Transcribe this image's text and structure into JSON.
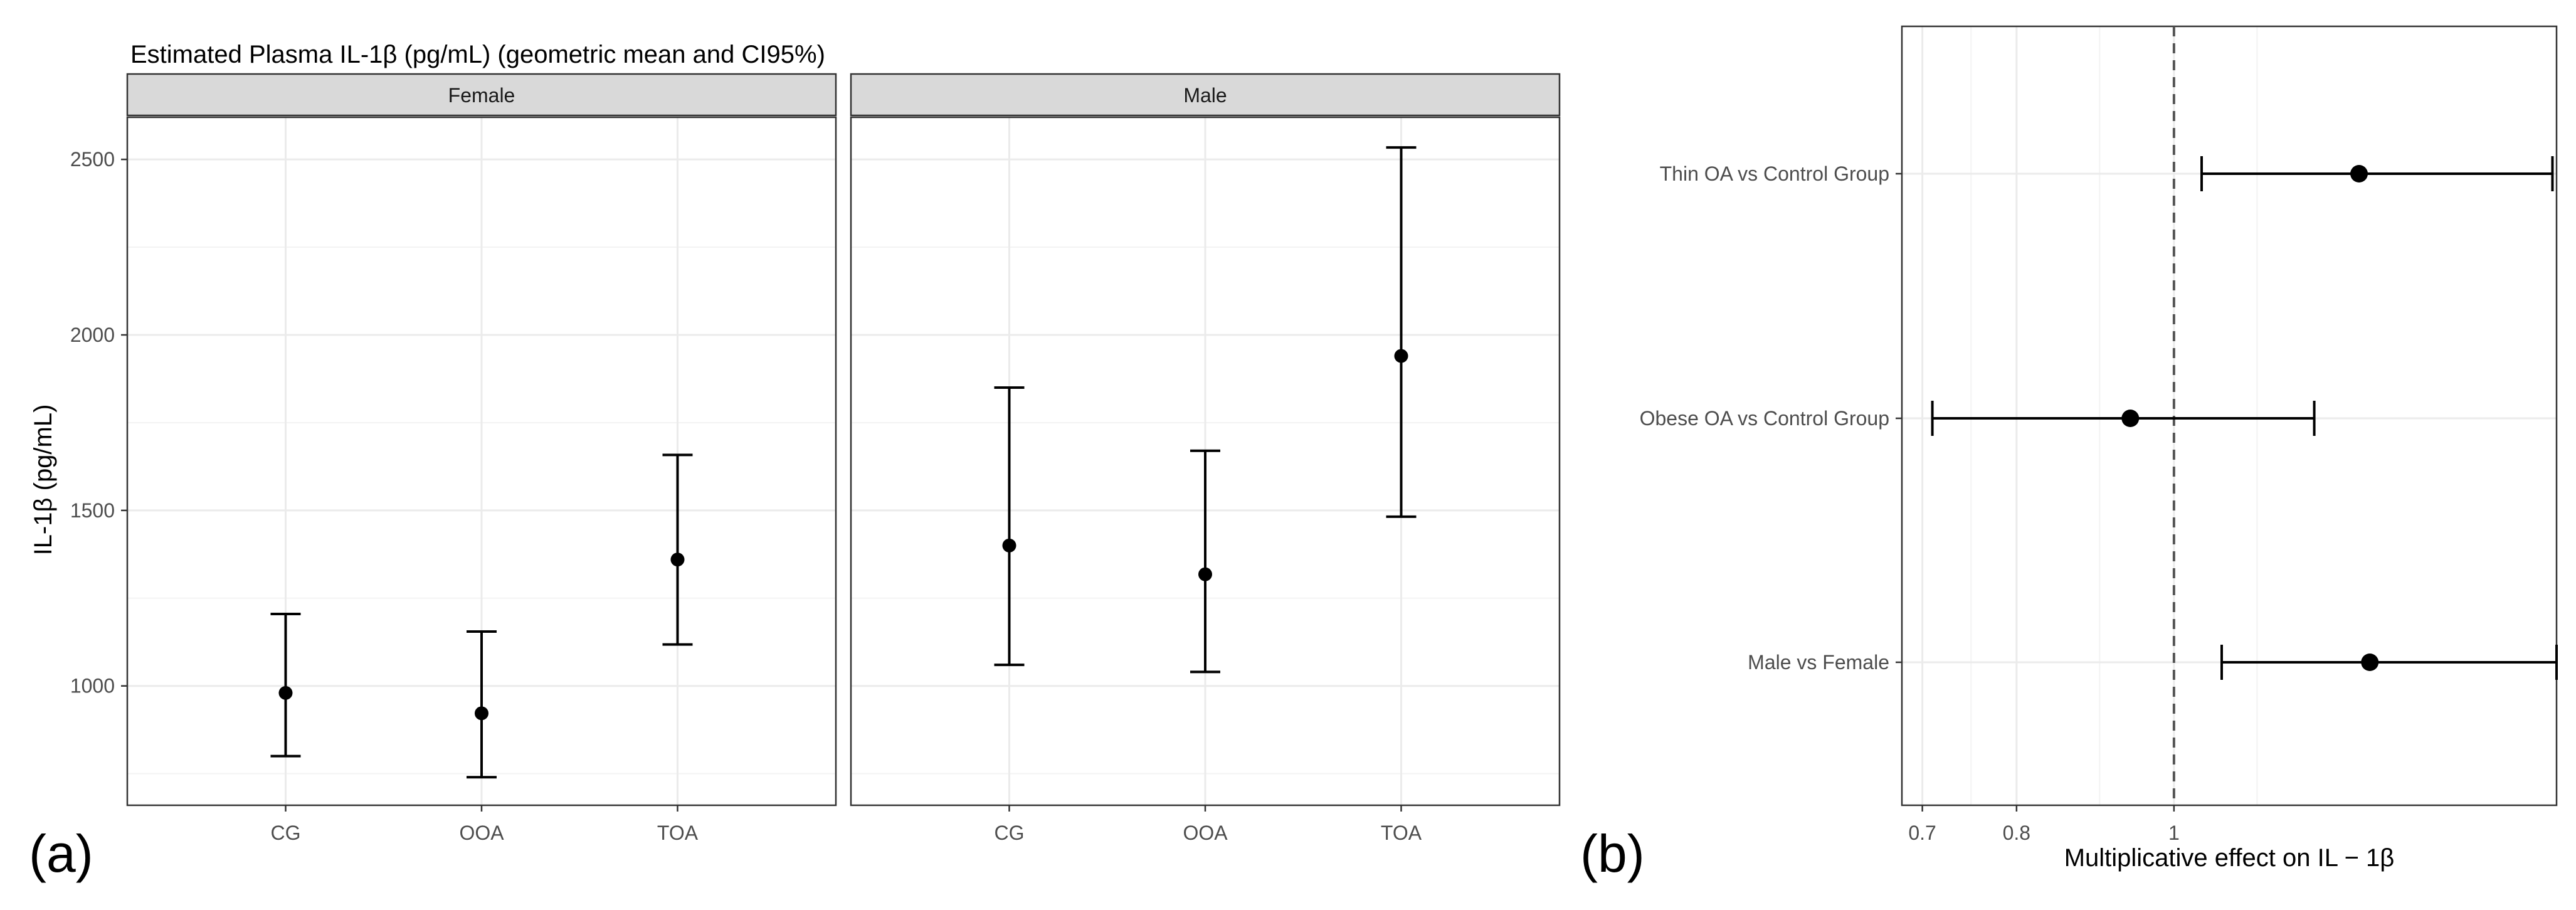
{
  "chart_data": [
    {
      "panel_label": "(a)",
      "type": "scatter",
      "title": "Estimated Plasma IL-1β (pg/mL) (geometric mean and CI95%)",
      "ylabel": "IL-1β (pg/mL)",
      "xlabel": "",
      "ylim": [
        660,
        2620
      ],
      "yticks": [
        1000,
        1500,
        2000,
        2500
      ],
      "yticks_minor": [
        750,
        1250,
        1750,
        2250
      ],
      "categories": [
        "CG",
        "OOA",
        "TOA"
      ],
      "grid": true,
      "facets": [
        {
          "label": "Female",
          "points": [
            {
              "category": "CG",
              "mean": 980,
              "lower": 800,
              "upper": 1205
            },
            {
              "category": "OOA",
              "mean": 922,
              "lower": 740,
              "upper": 1155
            },
            {
              "category": "TOA",
              "mean": 1360,
              "lower": 1118,
              "upper": 1658
            }
          ]
        },
        {
          "label": "Male",
          "points": [
            {
              "category": "CG",
              "mean": 1400,
              "lower": 1060,
              "upper": 1850
            },
            {
              "category": "OOA",
              "mean": 1318,
              "lower": 1040,
              "upper": 1670
            },
            {
              "category": "TOA",
              "mean": 1940,
              "lower": 1482,
              "upper": 2534
            }
          ]
        }
      ]
    },
    {
      "panel_label": "(b)",
      "type": "scatter",
      "title": "",
      "xlabel": "Multiplicative effect on IL − 1β",
      "ylabel": "",
      "x_scale": "log",
      "xlim": [
        0.68,
        1.72
      ],
      "xticks": [
        0.7,
        0.8,
        1.0
      ],
      "xticks_minor": [
        0.75,
        0.9,
        1.125
      ],
      "reference_line": 1.0,
      "grid": true,
      "rows": [
        {
          "label": "Thin OA vs Control Group",
          "estimate": 1.3,
          "lower": 1.04,
          "upper": 1.71
        },
        {
          "label": "Obese OA vs Control Group",
          "estimate": 0.94,
          "lower": 0.71,
          "upper": 1.22
        },
        {
          "label": "Male vs Female",
          "estimate": 1.32,
          "lower": 1.07,
          "upper": 1.72
        }
      ]
    }
  ]
}
